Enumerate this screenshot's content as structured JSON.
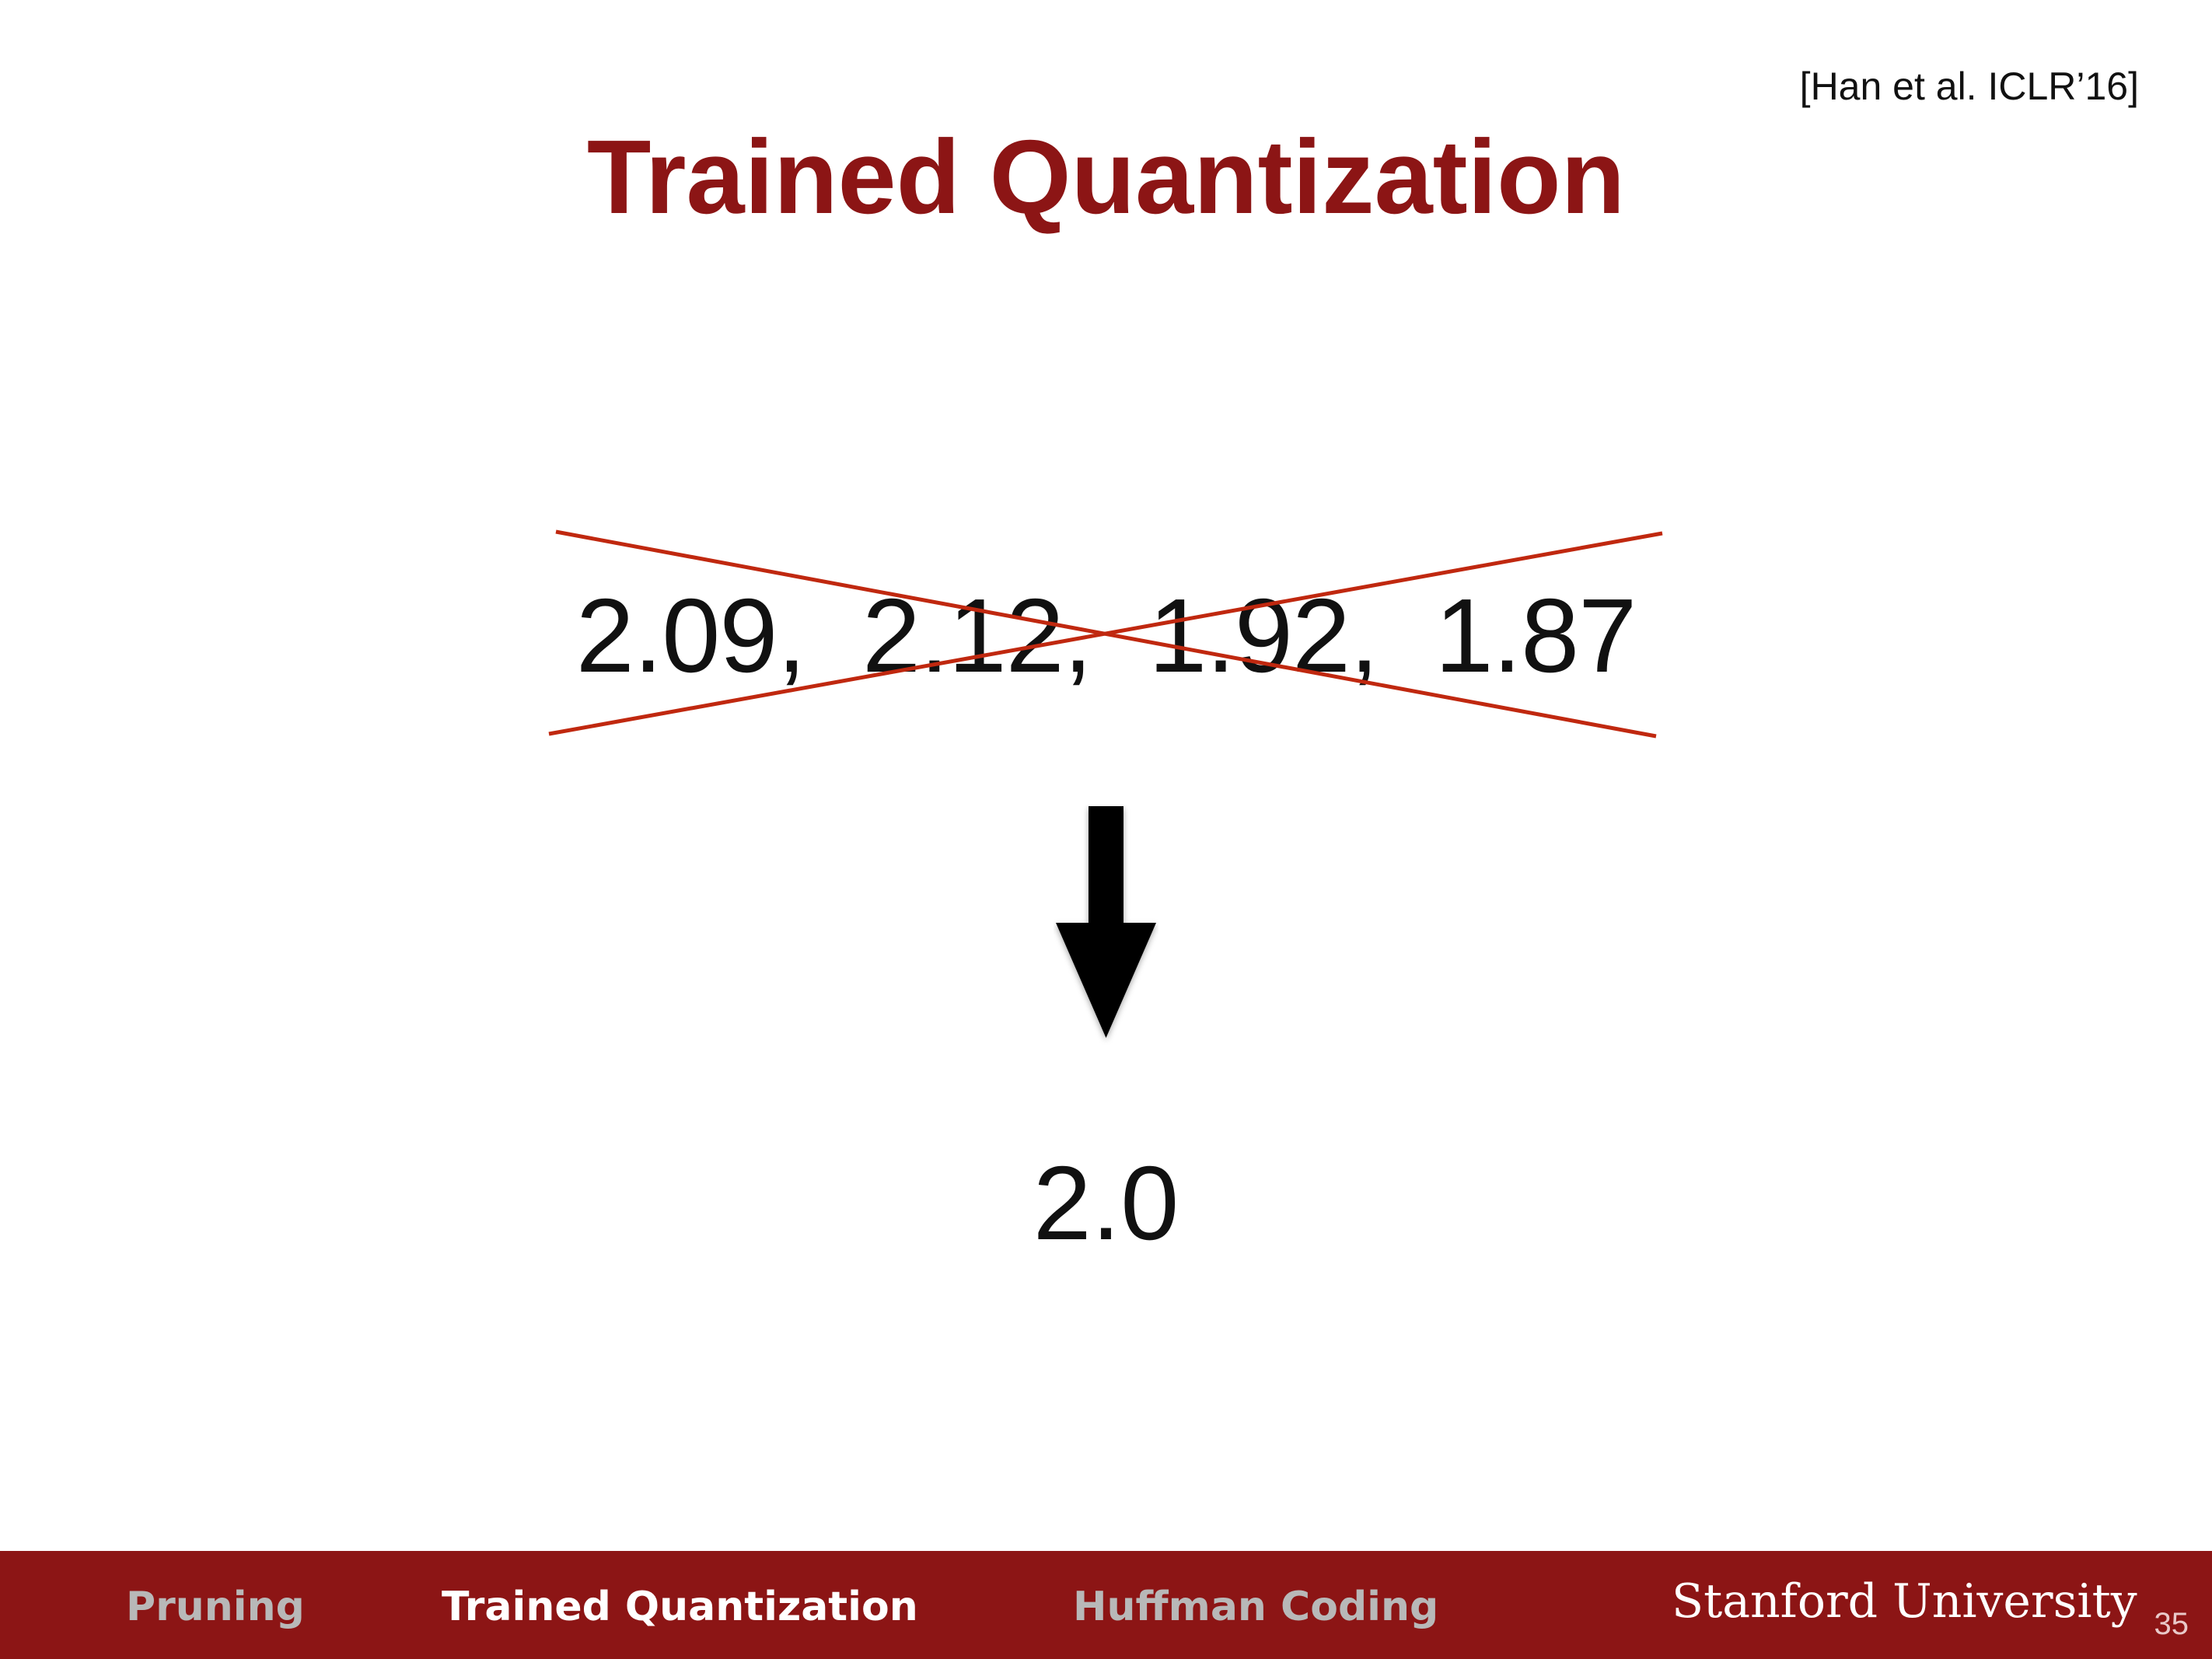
{
  "citation": "[Han et al. ICLR’16]",
  "title": "Trained Quantization",
  "weights_text": "2.09,  2.12,  1.92,  1.87",
  "result_text": "2.0",
  "icons": {
    "strike": "cross-out-icon",
    "arrow": "arrow-down-icon"
  },
  "colors": {
    "title": "#8c1515",
    "strike": "#c0280f",
    "footer_bg": "#8c1515",
    "tab_inactive": "#b8b8b8",
    "tab_active": "#ffffff"
  },
  "footer": {
    "tabs": [
      {
        "label": "Pruning",
        "active": false
      },
      {
        "label": "Trained Quantization",
        "active": true
      },
      {
        "label": "Huffman Coding",
        "active": false
      }
    ],
    "brand": "Stanford University",
    "page_number": "35"
  }
}
